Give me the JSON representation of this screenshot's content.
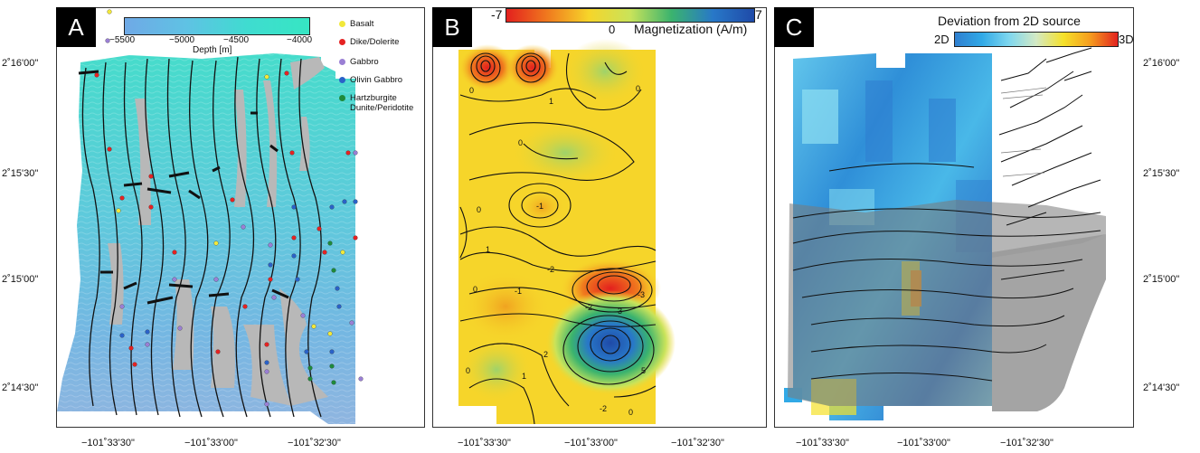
{
  "panels": {
    "a": {
      "label": "A",
      "colorbar": {
        "title": "Depth [m]",
        "ticks": [
          "−5500",
          "−5000",
          "−4500",
          "−4000"
        ],
        "gradient": [
          "#6fa9e6",
          "#5fc2e4",
          "#3fdcd0",
          "#36e6c3"
        ]
      },
      "legend": [
        {
          "label": "Basalt",
          "color": "#f2e83a"
        },
        {
          "label": "Dike/Dolerite",
          "color": "#e52222"
        },
        {
          "label": "Gabbro",
          "color": "#9a7fd4"
        },
        {
          "label": "Olivin Gabbro",
          "color": "#2a62c8"
        },
        {
          "label": "Hartzburgite\nDunite/Peridotite",
          "color": "#1e8a3a"
        }
      ],
      "x_ticks": [
        "−101˚33'30\"",
        "−101˚33'00\"",
        "−101˚32'30\""
      ],
      "y_ticks": [
        "2˚16'00\"",
        "2˚15'30\"",
        "2˚15'00\"",
        "2˚14'30\""
      ]
    },
    "b": {
      "label": "B",
      "colorbar": {
        "min_label": "-7",
        "max_label": "7",
        "mid_label": "0",
        "title": "Magnetization (A/m)",
        "gradient": [
          "#e3201e",
          "#f07a1e",
          "#f6d52a",
          "#c9e35a",
          "#3ab36e",
          "#2878c8",
          "#1f4aa8"
        ]
      },
      "contour_labels": [
        "0",
        "0",
        "1",
        "0",
        "-1",
        "0",
        "1",
        "-2",
        "-1",
        "0",
        "3",
        "-2",
        "-3",
        "2",
        "5",
        "1",
        "0",
        "-2",
        "0"
      ],
      "x_ticks": [
        "−101˚33'30\"",
        "−101˚33'00\"",
        "−101˚32'30\""
      ]
    },
    "c": {
      "label": "C",
      "colorbar": {
        "title": "Deviation from 2D source",
        "min_label": "2D",
        "max_label": "3D",
        "gradient": [
          "#2f7fd0",
          "#31a9e6",
          "#7fd7ef",
          "#d3e9c4",
          "#f5e12a",
          "#f59b1e",
          "#e2231f"
        ]
      },
      "x_ticks": [
        "−101˚33'30\"",
        "−101˚33'00\"",
        "−101˚32'30\""
      ],
      "y_ticks": [
        "2˚16'00\"",
        "2˚15'30\"",
        "2˚15'00\"",
        "2˚14'30\""
      ]
    }
  }
}
